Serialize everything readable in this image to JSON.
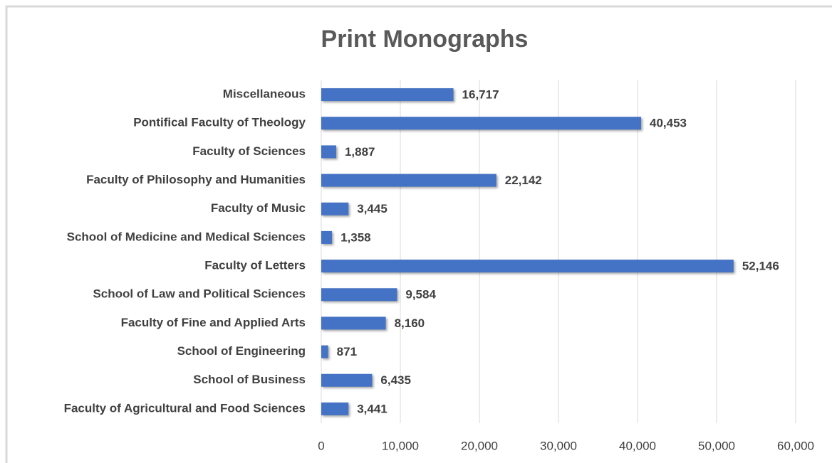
{
  "chart_data": {
    "type": "bar",
    "orientation": "horizontal",
    "title": "Print Monographs",
    "categories": [
      "Miscellaneous",
      "Pontifical Faculty of Theology",
      "Faculty of Sciences",
      "Faculty of Philosophy and Humanities",
      "Faculty of Music",
      "School of Medicine and Medical Sciences",
      "Faculty of Letters",
      "School of Law and Political Sciences",
      "Faculty of Fine and Applied Arts",
      "School of Engineering",
      "School of Business",
      "Faculty of Agricultural and Food Sciences"
    ],
    "values": [
      16717,
      40453,
      1887,
      22142,
      3445,
      1358,
      52146,
      9584,
      8160,
      871,
      6435,
      3441
    ],
    "value_labels": [
      "16,717",
      "40,453",
      "1,887",
      "22,142",
      "3,445",
      "1,358",
      "52,146",
      "9,584",
      "8,160",
      "871",
      "6,435",
      "3,441"
    ],
    "color": "#4472c4",
    "xlim": [
      0,
      60000
    ],
    "xticks": [
      0,
      {
        "value": 10000,
        "label": "10,000"
      },
      {
        "value": 20000,
        "label": "20,000"
      },
      {
        "value": 30000,
        "label": "30,000"
      },
      {
        "value": 40000,
        "label": "40,000"
      },
      {
        "value": 50000,
        "label": "50,000"
      },
      {
        "value": 60000,
        "label": "60,000"
      }
    ],
    "grid": true
  }
}
